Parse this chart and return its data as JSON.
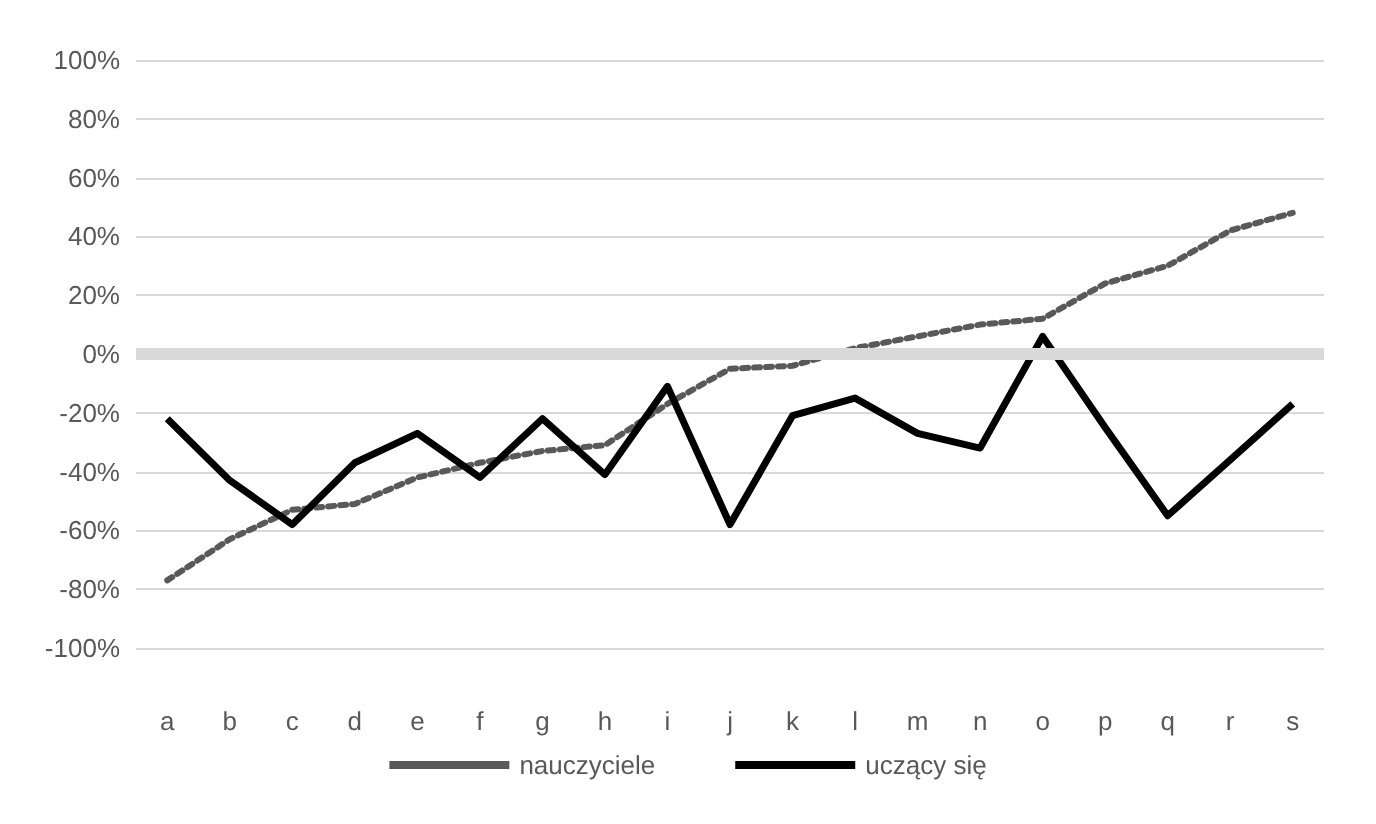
{
  "chart_data": {
    "type": "line",
    "categories": [
      "a",
      "b",
      "c",
      "d",
      "e",
      "f",
      "g",
      "h",
      "i",
      "j",
      "k",
      "l",
      "m",
      "n",
      "o",
      "p",
      "q",
      "r",
      "s"
    ],
    "series": [
      {
        "name": "nauczyciele",
        "color": "#595959",
        "line_style": "dotted",
        "values": [
          -0.77,
          -0.63,
          -0.53,
          -0.51,
          -0.42,
          -0.37,
          -0.33,
          -0.31,
          -0.17,
          -0.05,
          -0.04,
          0.02,
          0.06,
          0.1,
          0.12,
          0.24,
          0.3,
          0.42,
          0.48
        ]
      },
      {
        "name": "uczący się",
        "color": "#000000",
        "line_style": "solid",
        "values": [
          -0.22,
          -0.43,
          -0.58,
          -0.37,
          -0.27,
          -0.42,
          -0.22,
          -0.41,
          -0.11,
          -0.58,
          -0.21,
          -0.15,
          -0.27,
          -0.32,
          0.06,
          -0.25,
          -0.55,
          -0.36,
          -0.17
        ]
      }
    ],
    "ylim": [
      -1,
      1
    ],
    "yticks": [
      {
        "value": -1,
        "label": "-100%"
      },
      {
        "value": -0.8,
        "label": "-80%"
      },
      {
        "value": -0.6,
        "label": "-60%"
      },
      {
        "value": -0.4,
        "label": "-40%"
      },
      {
        "value": -0.2,
        "label": "-20%"
      },
      {
        "value": 0,
        "label": "0%"
      },
      {
        "value": 0.2,
        "label": "20%"
      },
      {
        "value": 0.4,
        "label": "40%"
      },
      {
        "value": 0.6,
        "label": "60%"
      },
      {
        "value": 0.8,
        "label": "80%"
      },
      {
        "value": 1,
        "label": "100%"
      }
    ],
    "grid": "y",
    "legend": "bottom",
    "marker": "none",
    "ref_lines": [
      {
        "axis": "y",
        "value": 0,
        "color": "#d9d9d9"
      }
    ]
  }
}
